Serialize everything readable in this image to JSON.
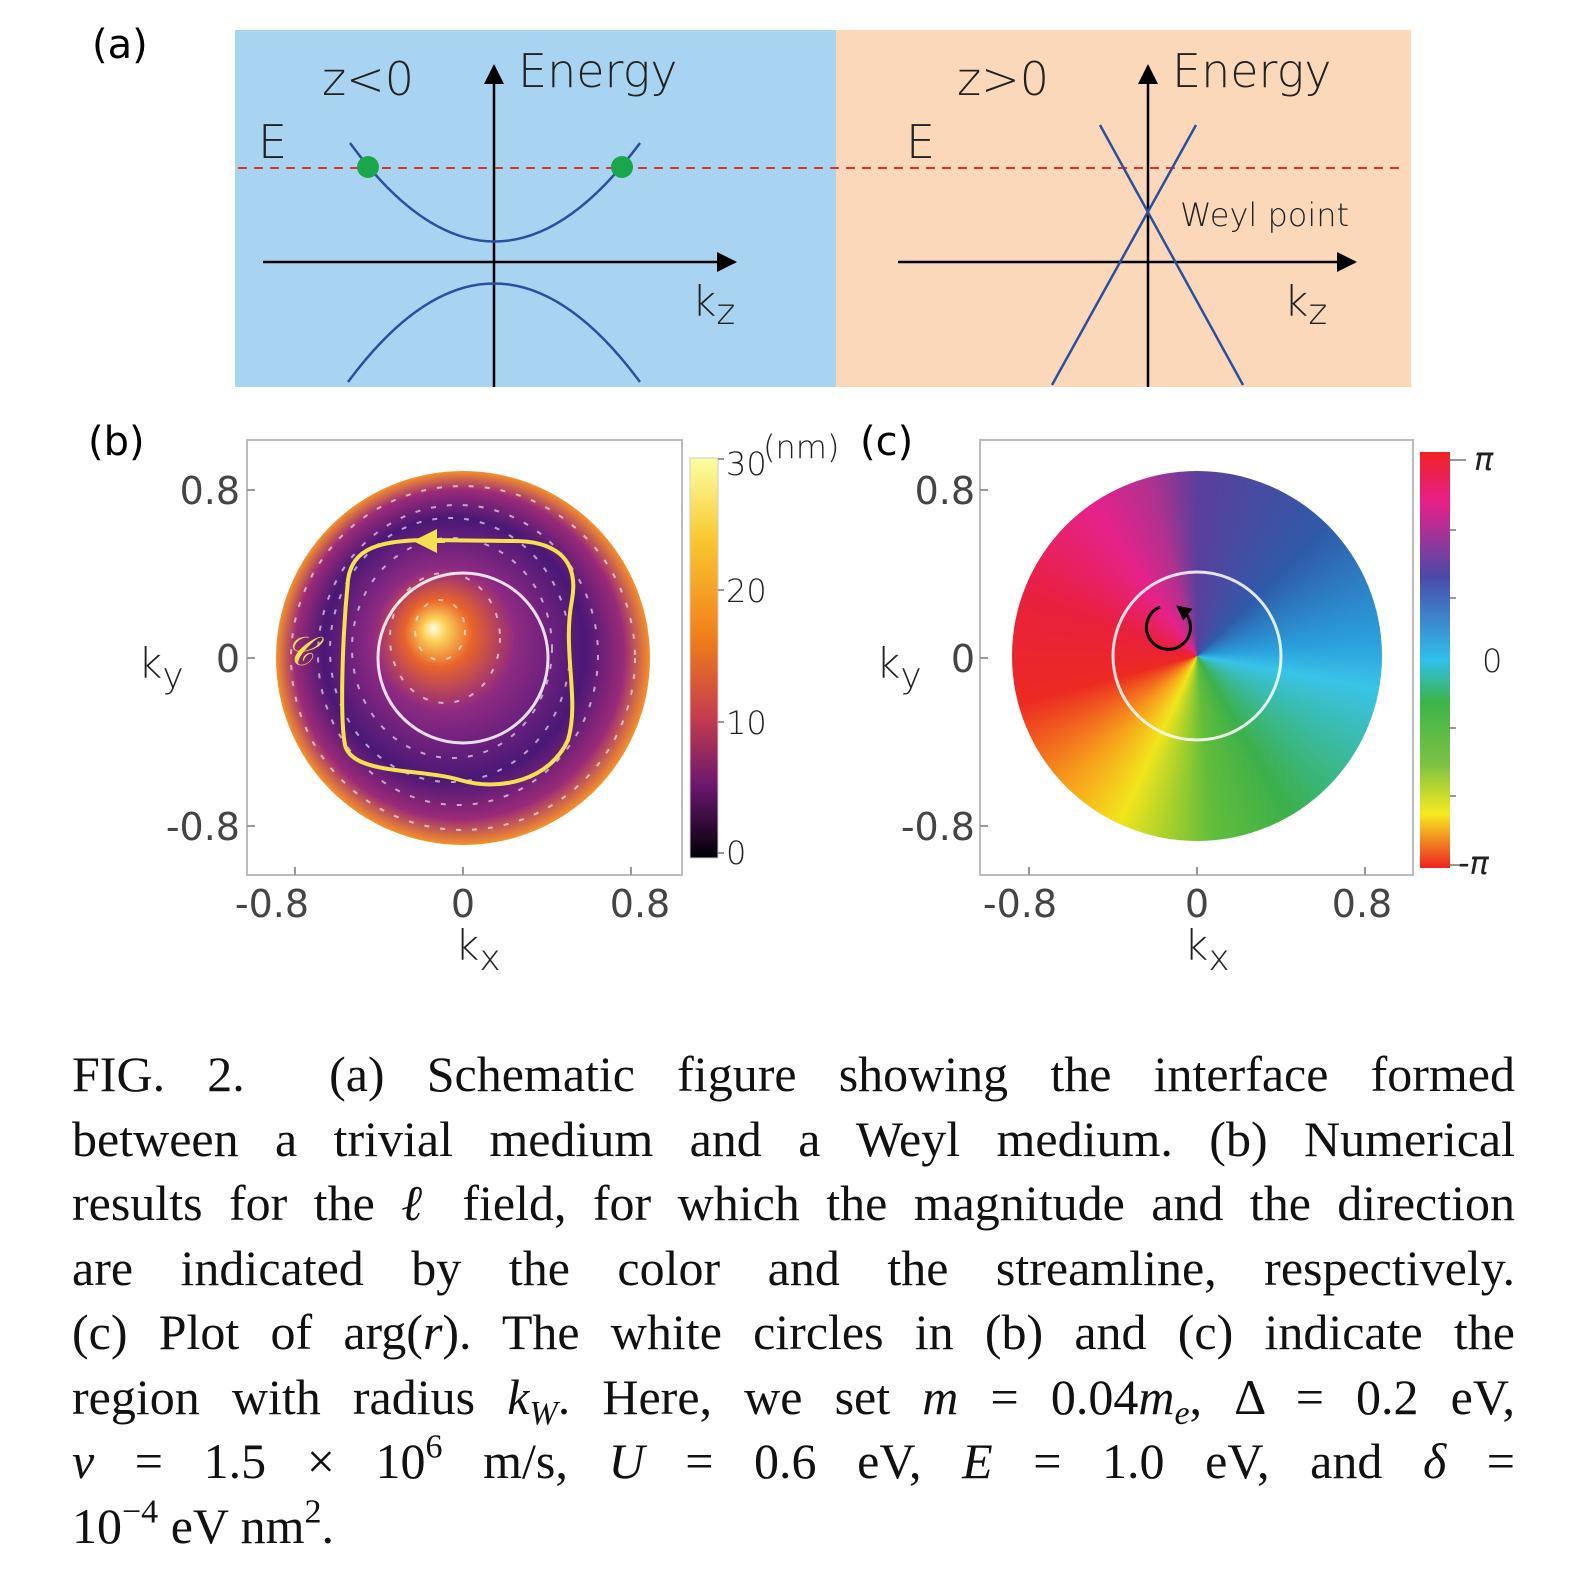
{
  "panel_a": {
    "label": "(a)",
    "left": {
      "region": "z<0",
      "energy": "Energy",
      "level": "E",
      "axis": {
        "base": "k",
        "sub": "z"
      }
    },
    "right": {
      "region": "z>0",
      "energy": "Energy",
      "level": "E",
      "point": "Weyl point",
      "axis": {
        "base": "k",
        "sub": "z"
      }
    }
  },
  "panel_b": {
    "label": "(b)",
    "yticks": [
      "0.8",
      "0",
      "-0.8"
    ],
    "xticks": [
      "-0.8",
      "0",
      "0.8"
    ],
    "ylabel": {
      "base": "k",
      "sub": "y"
    },
    "xlabel": {
      "base": "k",
      "sub": "x"
    },
    "contour": "𝒞",
    "colorbar": {
      "unit": "(nm)",
      "ticks": [
        "30",
        "20",
        "10",
        "0"
      ]
    }
  },
  "panel_c": {
    "label": "(c)",
    "yticks": [
      "0.8",
      "0",
      "-0.8"
    ],
    "xticks": [
      "-0.8",
      "0",
      "0.8"
    ],
    "ylabel": {
      "base": "k",
      "sub": "y"
    },
    "xlabel": {
      "base": "k",
      "sub": "x"
    },
    "colorbar": {
      "ticks": [
        "π",
        "0",
        "-π"
      ]
    }
  },
  "caption": {
    "lines": [
      [
        "FIG. 2.",
        "(a) Schematic figure showing the interface formed"
      ],
      [
        "between a trivial medium and a Weyl medium. (b) Numerical"
      ],
      [
        "results for the ",
        "ℓ",
        " field, for which the magnitude and the direction"
      ],
      [
        "are indicated by the color and the streamline, respectively."
      ],
      [
        "(c) Plot of arg(",
        "r",
        "). The white circles in (b) and (c) indicate the"
      ],
      [
        "region with radius ",
        "k",
        "W",
        ". Here, we set ",
        "m",
        " = 0.04",
        "m",
        "e",
        ", Δ = 0.2 eV,"
      ],
      [
        "v",
        " = 1.5 × 10",
        "6",
        " m/s,",
        "U",
        " = 0.6 eV,",
        "E",
        " = 1.0 eV,",
        "and",
        "δ",
        " ="
      ],
      [
        "10",
        "−4",
        " eV nm",
        "2",
        "."
      ]
    ]
  }
}
